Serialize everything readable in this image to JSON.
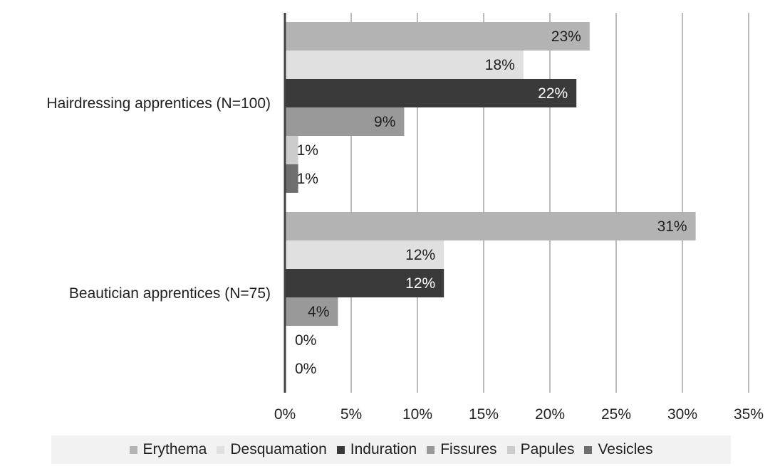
{
  "chart_data": {
    "type": "bar",
    "orientation": "horizontal",
    "categories": [
      "Hairdressing apprentices (N=100)",
      "Beautician apprentices (N=75)"
    ],
    "series": [
      {
        "name": "Erythema",
        "values": [
          23,
          31
        ],
        "labels": [
          "23%",
          "31%"
        ],
        "color": "#b3b3b3",
        "label_color": "#1f1f1f"
      },
      {
        "name": "Desquamation",
        "values": [
          18,
          12
        ],
        "labels": [
          "18%",
          "12%"
        ],
        "color": "#e0e0e0",
        "label_color": "#1f1f1f"
      },
      {
        "name": "Induration",
        "values": [
          22,
          12
        ],
        "labels": [
          "22%",
          "12%"
        ],
        "color": "#3a3a3a",
        "label_color": "#ffffff"
      },
      {
        "name": "Fissures",
        "values": [
          9,
          4
        ],
        "labels": [
          "9%",
          "4%"
        ],
        "color": "#999999",
        "label_color": "#1f1f1f"
      },
      {
        "name": "Papules",
        "values": [
          1,
          0
        ],
        "labels": [
          "1%",
          "0%"
        ],
        "color": "#cccccc",
        "label_color": "#1f1f1f"
      },
      {
        "name": "Vesicles",
        "values": [
          1,
          0
        ],
        "labels": [
          "1%",
          "0%"
        ],
        "color": "#6e6e6e",
        "label_color": "#1f1f1f"
      }
    ],
    "xlim": [
      0,
      35
    ],
    "xticks": [
      0,
      5,
      10,
      15,
      20,
      25,
      30,
      35
    ],
    "xtick_labels": [
      "0%",
      "5%",
      "10%",
      "15%",
      "20%",
      "25%",
      "30%",
      "35%"
    ],
    "grid": true,
    "legend_position": "bottom",
    "gridline_color": "#a6a6a6",
    "axis_color": "#404040"
  }
}
